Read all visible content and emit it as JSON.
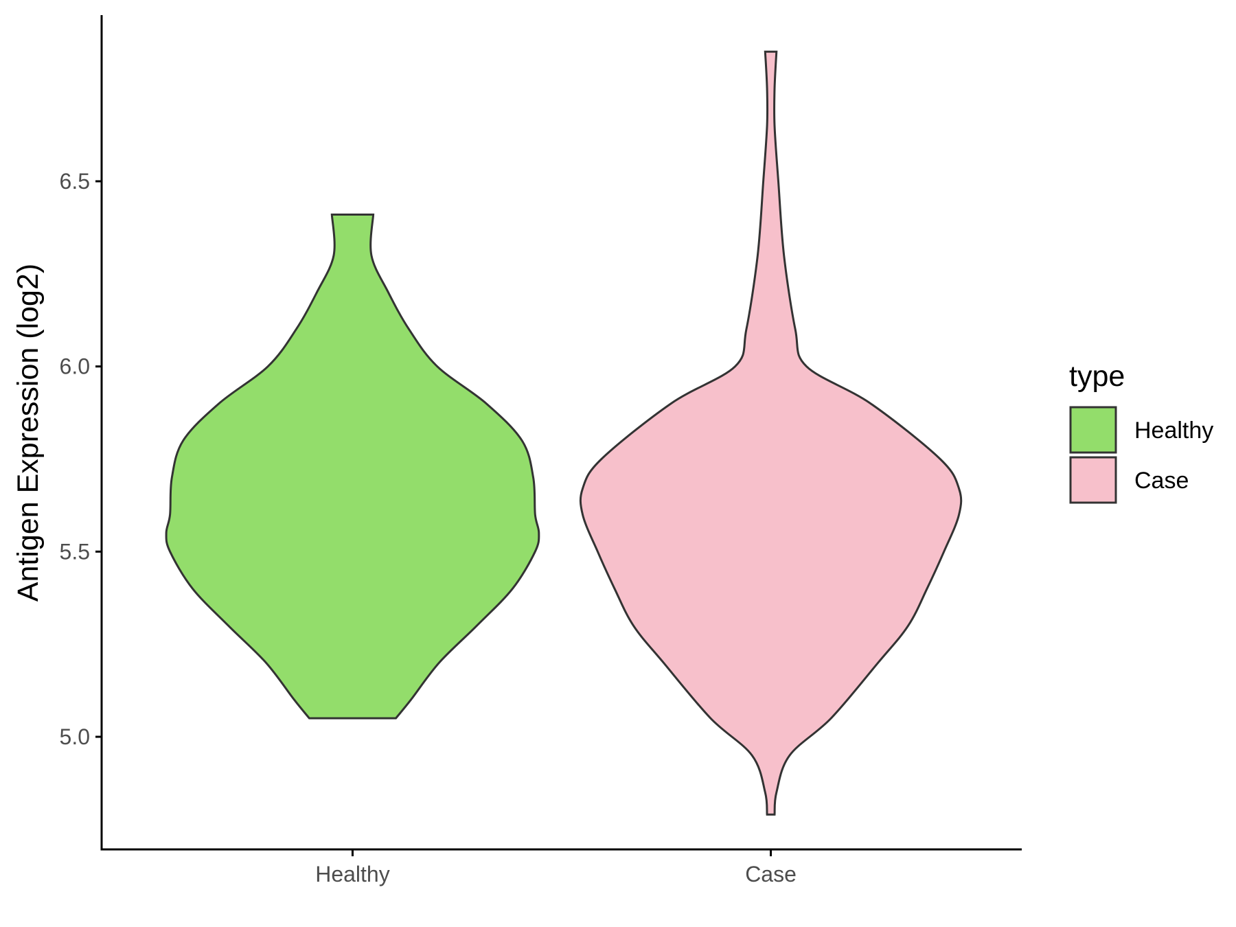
{
  "chart_data": {
    "type": "violin",
    "title": "",
    "xlabel": "",
    "ylabel": "Antigen Expression (log2)",
    "categories": [
      "Healthy",
      "Case"
    ],
    "ylim": [
      4.67,
      6.98
    ],
    "yticks": [
      5.0,
      5.5,
      6.0,
      6.5
    ],
    "ytick_labels": [
      "5.0",
      "5.5",
      "6.0",
      "6.5"
    ],
    "series": [
      {
        "name": "Healthy",
        "color": "#93DD6B",
        "min": 5.05,
        "max": 6.41,
        "density_profile": [
          [
            5.05,
            0.23
          ],
          [
            5.1,
            0.31
          ],
          [
            5.2,
            0.46
          ],
          [
            5.3,
            0.66
          ],
          [
            5.4,
            0.85
          ],
          [
            5.5,
            0.97
          ],
          [
            5.55,
            0.99
          ],
          [
            5.6,
            0.97
          ],
          [
            5.7,
            0.96
          ],
          [
            5.8,
            0.9
          ],
          [
            5.9,
            0.71
          ],
          [
            6.0,
            0.45
          ],
          [
            6.1,
            0.3
          ],
          [
            6.2,
            0.19
          ],
          [
            6.3,
            0.1
          ],
          [
            6.41,
            0.11
          ]
        ]
      },
      {
        "name": "Case",
        "color": "#F7C0CB",
        "min": 4.79,
        "max": 6.85,
        "density_profile": [
          [
            4.79,
            0.02
          ],
          [
            4.85,
            0.03
          ],
          [
            4.95,
            0.1
          ],
          [
            5.05,
            0.32
          ],
          [
            5.2,
            0.57
          ],
          [
            5.3,
            0.73
          ],
          [
            5.4,
            0.83
          ],
          [
            5.5,
            0.92
          ],
          [
            5.6,
            1.0
          ],
          [
            5.67,
            1.0
          ],
          [
            5.75,
            0.9
          ],
          [
            5.9,
            0.53
          ],
          [
            6.0,
            0.19
          ],
          [
            6.1,
            0.13
          ],
          [
            6.3,
            0.07
          ],
          [
            6.5,
            0.04
          ],
          [
            6.65,
            0.02
          ],
          [
            6.75,
            0.02
          ],
          [
            6.85,
            0.03
          ]
        ]
      }
    ],
    "legend": {
      "title": "type",
      "position": "right",
      "items": [
        "Healthy",
        "Case"
      ]
    }
  }
}
